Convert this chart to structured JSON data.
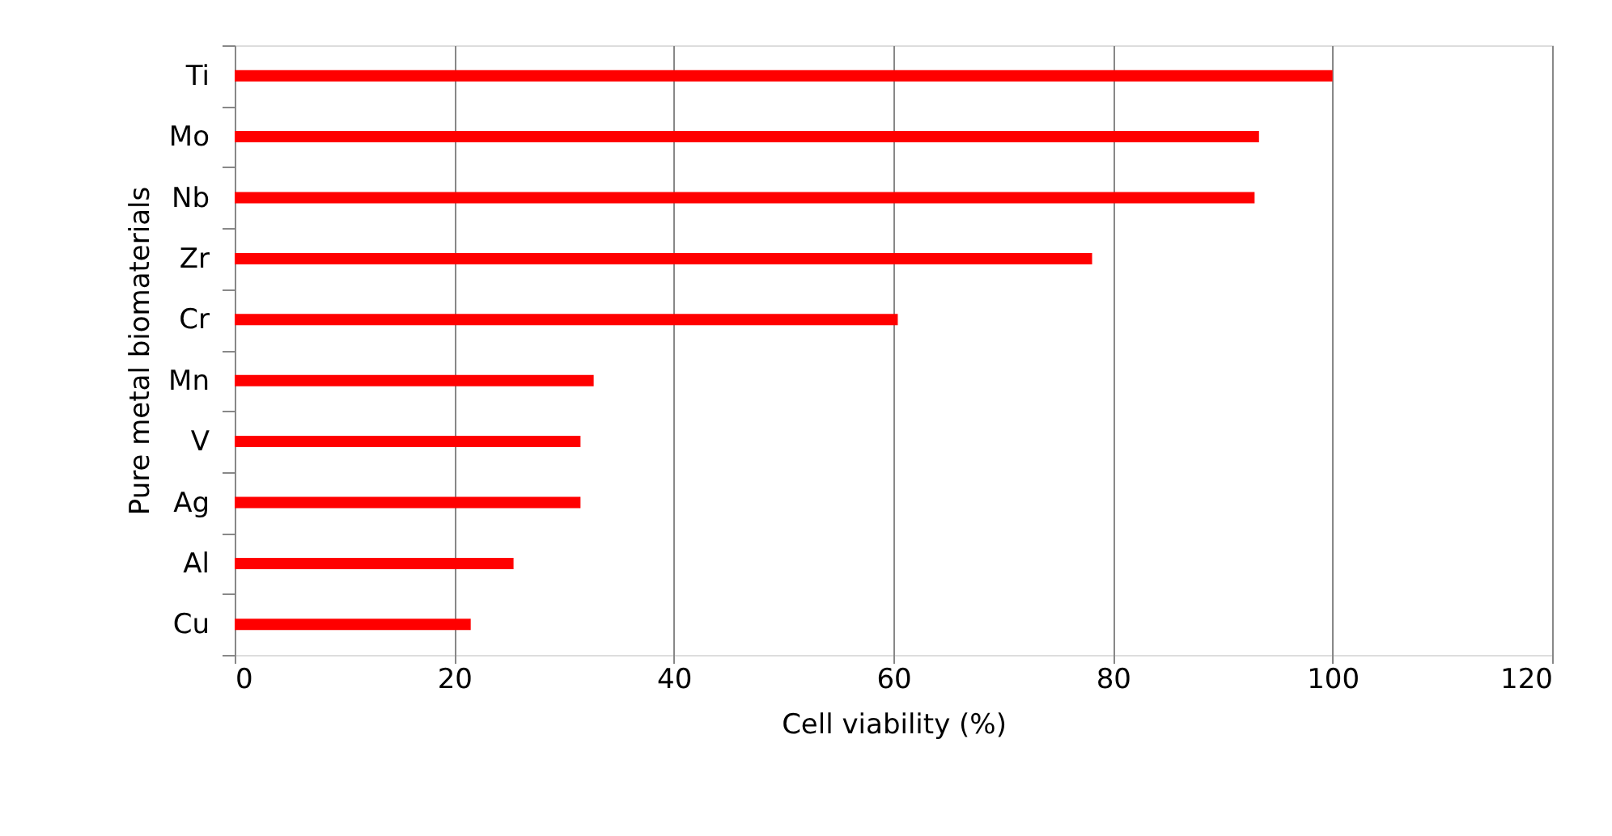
{
  "chart_data": {
    "type": "bar",
    "orientation": "horizontal",
    "xlabel": "Cell viability (%)",
    "ylabel": "Pure metal biomaterials",
    "categories": [
      "Ti",
      "Mo",
      "Nb",
      "Zr",
      "Cr",
      "Mn",
      "V",
      "Ag",
      "Al",
      "Cu"
    ],
    "values": [
      100,
      93.3,
      92.9,
      78.1,
      60.4,
      32.7,
      31.5,
      31.5,
      25.4,
      21.5
    ],
    "color": "#ff0000",
    "xlim": [
      0,
      120
    ],
    "xticks": [
      0,
      20,
      40,
      60,
      80,
      100,
      120
    ],
    "grid": "x"
  }
}
